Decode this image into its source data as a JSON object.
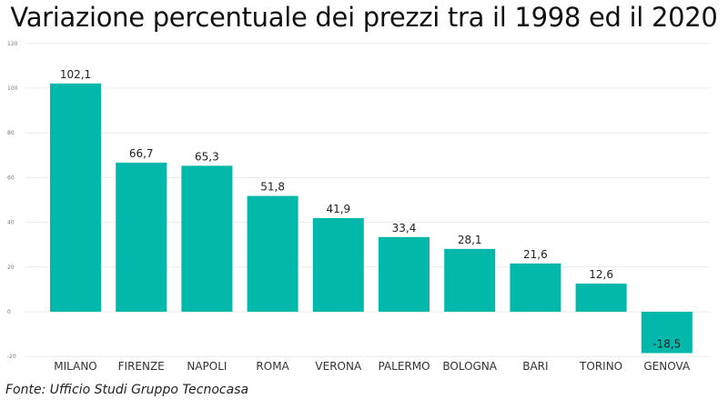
{
  "chart_data": {
    "type": "bar",
    "title": "Variazione percentuale dei prezzi tra il 1998 ed il 2020",
    "categories": [
      "MILANO",
      "FIRENZE",
      "NAPOLI",
      "ROMA",
      "VERONA",
      "PALERMO",
      "BOLOGNA",
      "BARI",
      "TORINO",
      "GENOVA"
    ],
    "values": [
      102.1,
      66.7,
      65.3,
      51.8,
      41.9,
      33.4,
      28.1,
      21.6,
      12.6,
      -18.5
    ],
    "value_labels": [
      "102,1",
      "66,7",
      "65,3",
      "51,8",
      "41,9",
      "33,4",
      "28,1",
      "21,6",
      "12,6",
      "-18,5"
    ],
    "yticks": [
      -20,
      0,
      20,
      40,
      60,
      80,
      100,
      120
    ],
    "ylim": [
      -20,
      120
    ],
    "xlabel": "",
    "ylabel": "",
    "grid": true,
    "bar_color": "#01B8AA",
    "source": "Fonte: Ufficio Studi Gruppo Tecnocasa"
  }
}
